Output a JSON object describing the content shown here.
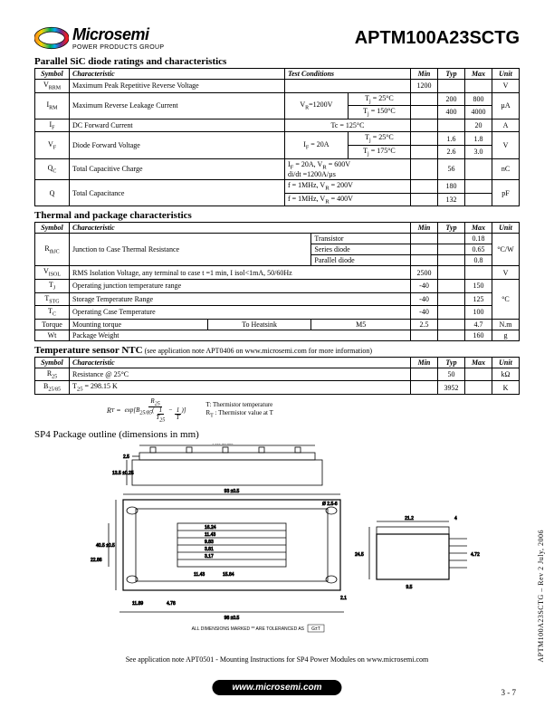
{
  "header": {
    "logo_name": "Microsemi",
    "logo_tagline": "POWER PRODUCTS GROUP",
    "logo_colors": [
      "#f7941d",
      "#ffd400",
      "#8dc63f",
      "#00a651",
      "#00aeef",
      "#662d91",
      "#ed1c24"
    ],
    "part_number": "APTM100A23SCTG"
  },
  "tbl1": {
    "title": "Parallel SiC diode ratings and characteristics",
    "headers": [
      "Symbol",
      "Characteristic",
      "Test Conditions",
      "Min",
      "Typ",
      "Max",
      "Unit"
    ],
    "rows": [
      {
        "sym": "V",
        "sub": "RRM",
        "char": "Maximum Peak Repetitive Reverse Voltage",
        "cond": "",
        "min": "1200",
        "typ": "",
        "max": "",
        "unit": "V"
      },
      {
        "sym": "I",
        "sub": "RM",
        "char": "Maximum Reverse Leakage Current",
        "cond1": "V",
        "cond1s": "R",
        "cond1v": "=1200V",
        "cond2a": "T",
        "cond2as": "j",
        "cond2av": " = 25°C",
        "typ_a": "200",
        "max_a": "800",
        "cond2b": "T",
        "cond2bs": "j",
        "cond2bv": " = 150°C",
        "typ_b": "400",
        "max_b": "4000",
        "unit": "µA"
      },
      {
        "sym": "I",
        "sub": "F",
        "char": "DC Forward Current",
        "cond": "Tc = 125°C",
        "min": "",
        "typ": "",
        "max": "20",
        "unit": "A"
      },
      {
        "sym": "V",
        "sub": "F",
        "char": "Diode Forward Voltage",
        "cond1": "I",
        "cond1s": "F",
        "cond1v": " = 20A",
        "cond2a": "T",
        "cond2as": "j",
        "cond2av": " = 25°C",
        "typ_a": "1.6",
        "max_a": "1.8",
        "cond2b": "T",
        "cond2bs": "j",
        "cond2bv": " = 175°C",
        "typ_b": "2.6",
        "max_b": "3.0",
        "unit": "V"
      },
      {
        "sym": "Q",
        "sub": "C",
        "char": "Total Capacitive Charge",
        "cond": "I<sub>F</sub> = 20A, V<sub>R</sub> = 600V<br>di/dt =1200A/µs",
        "min": "",
        "typ": "56",
        "max": "",
        "unit": "nC"
      },
      {
        "sym": "Q",
        "sub": "",
        "char": "Total Capacitance",
        "cond_a": "f = 1MHz, V<sub>R</sub> = 200V",
        "typ_a": "180",
        "cond_b": "f = 1MHz, V<sub>R</sub> = 400V",
        "typ_b": "132",
        "unit": "pF"
      }
    ]
  },
  "tbl2": {
    "title": "Thermal and package characteristics",
    "headers": [
      "Symbol",
      "Characteristic",
      "",
      "Min",
      "Typ",
      "Max",
      "Unit"
    ],
    "rthjc": {
      "sym": "R",
      "sub": "thJC",
      "char": "Junction to Case Thermal Resistance",
      "r1": "Transistor",
      "r1max": "0.18",
      "r2": "Series diode",
      "r2max": "0.65",
      "r3": "Parallel diode",
      "r3max": "0.8",
      "unit": "°C/W"
    },
    "visol": {
      "sym": "V",
      "sub": "ISOL",
      "char": "RMS Isolation Voltage, any terminal to case t =1 min, I isol<1mA, 50/60Hz",
      "min": "2500",
      "unit": "V"
    },
    "tj": {
      "sym": "T",
      "sub": "J",
      "char": "Operating junction temperature range",
      "min": "-40",
      "max": "150",
      "unit_rowspan": true,
      "unit": "°C"
    },
    "tstg": {
      "sym": "T",
      "sub": "STG",
      "char": "Storage Temperature Range",
      "min": "-40",
      "max": "125"
    },
    "tc": {
      "sym": "T",
      "sub": "C",
      "char": "Operating Case Temperature",
      "min": "-40",
      "max": "100"
    },
    "torque": {
      "sym": "Torque",
      "char": "Mounting torque",
      "cond1": "To Heatsink",
      "cond2": "M5",
      "min": "2.5",
      "max": "4.7",
      "unit": "N.m"
    },
    "wt": {
      "sym": "Wt",
      "char": "Package Weight",
      "max": "160",
      "unit": "g"
    }
  },
  "tbl3": {
    "title": "Temperature sensor NTC",
    "title_note": " (see application note APT0406 on www.microsemi.com for more information)",
    "headers": [
      "Symbol",
      "Characteristic",
      "Min",
      "Typ",
      "Max",
      "Unit"
    ],
    "r25": {
      "sym": "R",
      "sub": "25",
      "char": "Resistance @ 25°C",
      "typ": "50",
      "unit": "kΩ"
    },
    "b": {
      "sym": "B",
      "sub": "25/85",
      "char": "T<sub>25</sub> = 298.15 K",
      "typ": "3952",
      "unit": "K"
    }
  },
  "formula": {
    "lhs": "R",
    "lhs_sub": "T",
    " eq ": " = ",
    "num": "R",
    "num_sub": "25",
    "den_pre": "exp",
    "den_b": "B",
    "den_bsub": "25/85",
    "inner_a_n": "1",
    "inner_a_d": "T",
    "inner_a_dsub": "25",
    "inner_b_n": "1",
    "inner_b_d": "T",
    "leg1": "T: Thermistor temperature",
    "leg2": "R",
    "leg2sub": "T",
    "leg2rest": " : Thermistor value at T"
  },
  "pkg": {
    "title": "SP4 Package outline",
    "title_note": " (dimensions in mm)",
    "dims": {
      "top_w": "78.5 ±0.25",
      "top_l": "2.5",
      "h_side": "13.5 ±0.25",
      "body_w": "93 ±0.5",
      "slot": "Ø 2.5-6",
      "pins": [
        "16.24",
        "11.43",
        "9.83",
        "3.81",
        "3.17"
      ],
      "pin_sum": "11.43",
      "pin_w": "15.84",
      "h_body": "40.5 ±0.5",
      "h_inner": "22.86",
      "h_b1": "11.89",
      "h_b2": "4.78",
      "total_w": "98 ±0.5",
      "bot_off": "2.1",
      "r_w": "21.2",
      "r_ext": "4",
      "r_h": "24.5",
      "r_base": "9.5",
      "r_pin_h": "4.72"
    },
    "tol_note": "ALL DIMENSIONS MARKED ** ARE TOLERANCED AS",
    "tol_sym": "G±T"
  },
  "footnote": "See application note APT0501 - Mounting Instructions for SP4 Power Modules on www.microsemi.com",
  "footer": {
    "url": "www.microsemi.com",
    "page": "3 - 7",
    "side": "APTM100A23SCTG – Rev 2     July, 2006"
  }
}
